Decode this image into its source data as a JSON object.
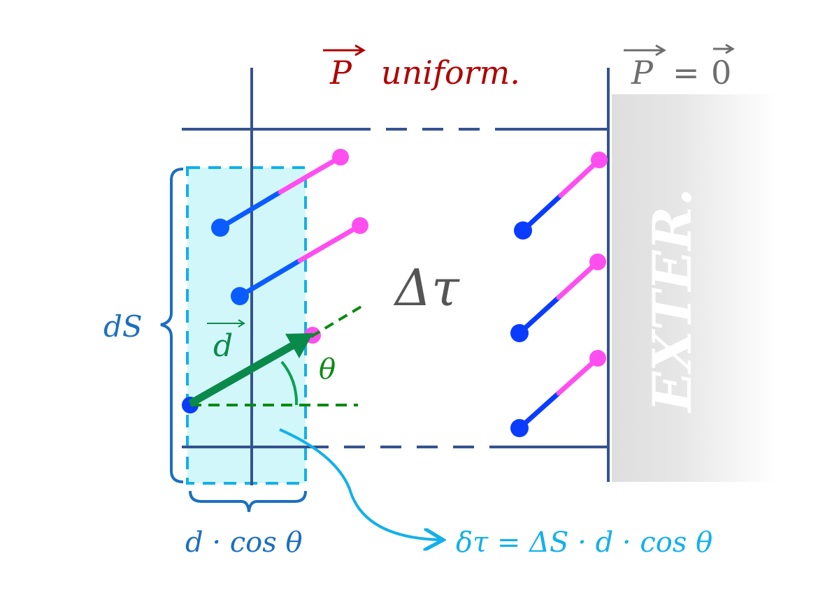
{
  "labels": {
    "p_uniform_vec": "P",
    "p_uniform_text": "uniform.",
    "p_zero_vec": "P",
    "p_zero_eq": "=",
    "p_zero_val": "0",
    "delta_tau": "Δτ",
    "ds": "dS",
    "d_vec": "d",
    "theta": "θ",
    "d_cos_theta": "d · cos θ",
    "formula": "δτ = ΔS · d · cos θ",
    "exterior": "EXTER."
  },
  "colors": {
    "boundary": "#35538f",
    "cyan_region": "#d2f7fb",
    "cyan_border": "#12b0ea",
    "negative_pole": "#0a3cff",
    "positive_pole": "#ff4ef0",
    "dipole_vector": "#0a8a4a",
    "title_red": "#b00000",
    "grey_text": "#6e6e6e",
    "brace_blue": "#1a6fbf"
  }
}
